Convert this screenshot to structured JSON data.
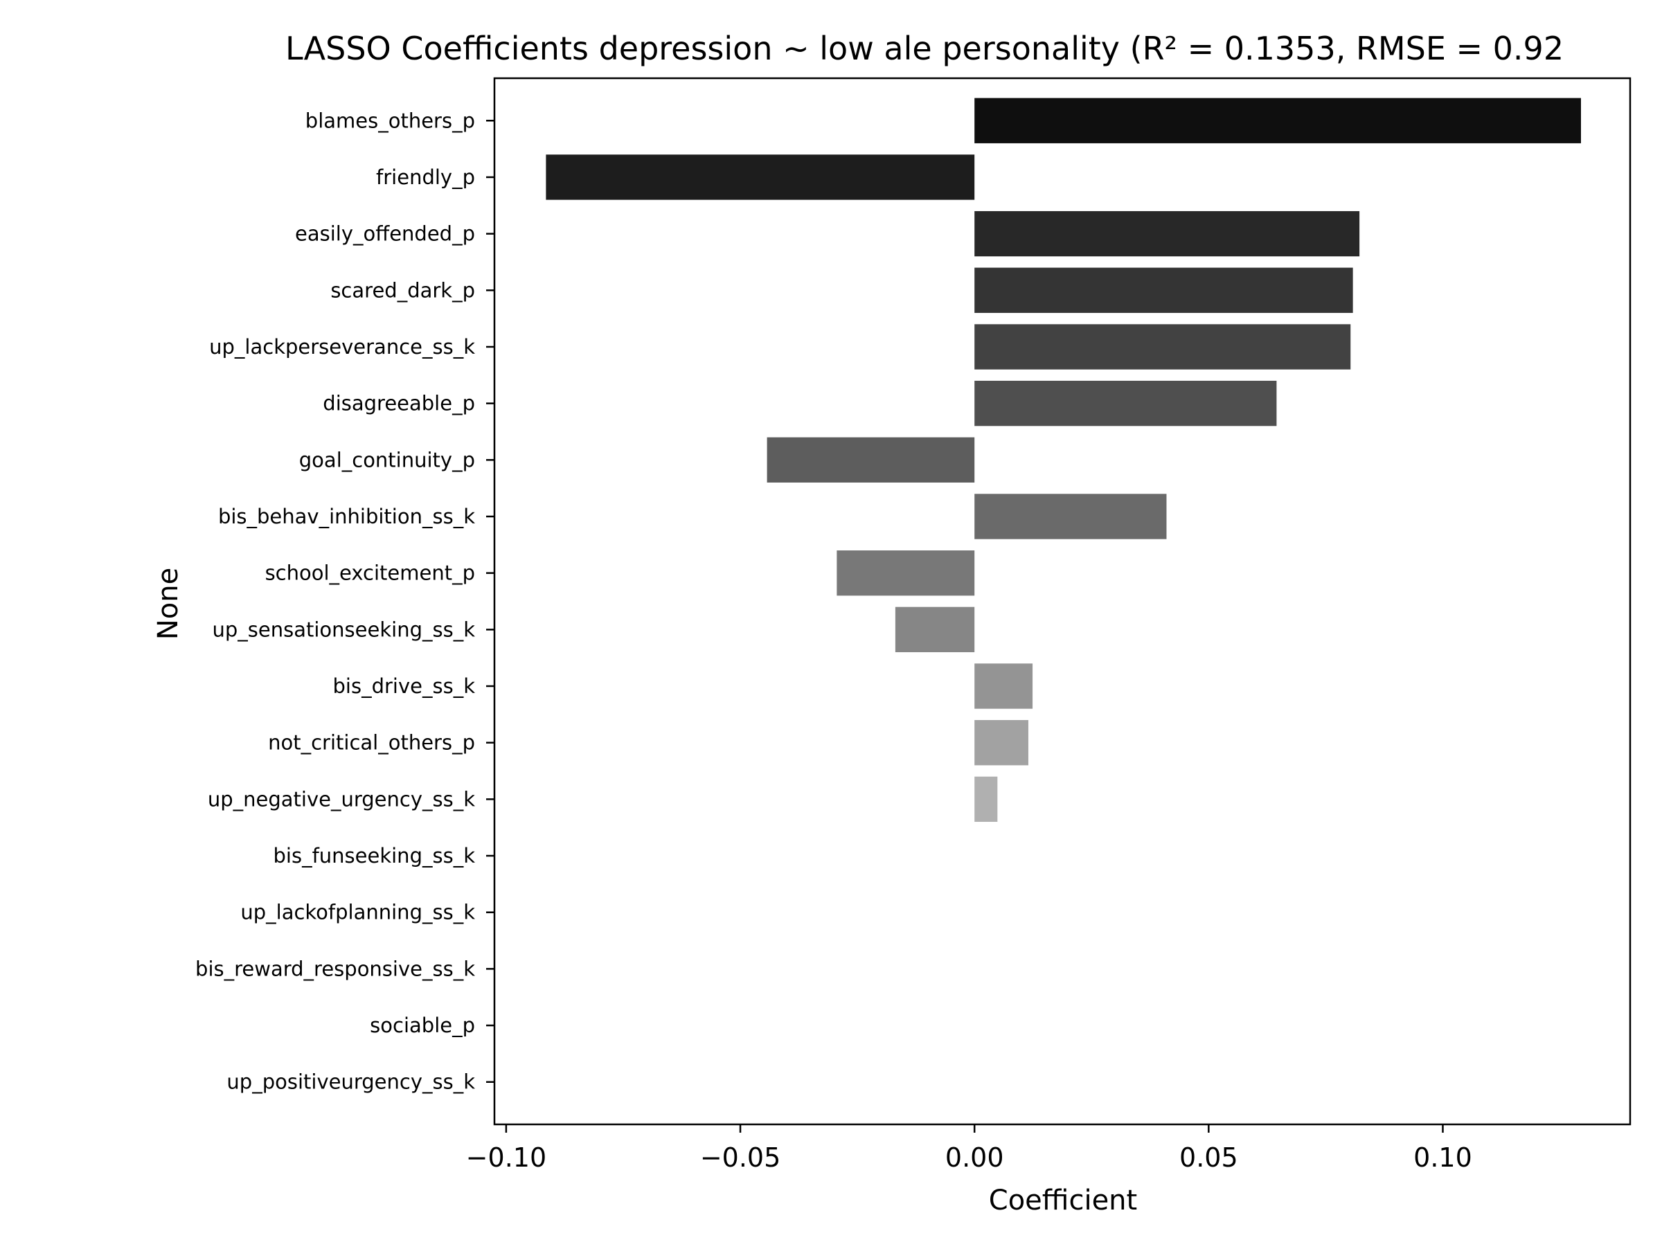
{
  "chart_data": {
    "type": "bar",
    "orientation": "horizontal",
    "title": "LASSO Coefficients depression ~ low ale personality (R² = 0.1353, RMSE = 0.92",
    "xlabel": "Coefficient",
    "ylabel": "None",
    "xlim": [
      -0.1025,
      0.14
    ],
    "xticks": [
      -0.1,
      -0.05,
      0.0,
      0.05,
      0.1
    ],
    "xtick_labels": [
      "−0.10",
      "−0.05",
      "0.00",
      "0.05",
      "0.10"
    ],
    "grid": false,
    "legend": "none",
    "categories": [
      "blames_others_p",
      "friendly_p",
      "easily_offended_p",
      "scared_dark_p",
      "up_lackperseverance_ss_k",
      "disagreeable_p",
      "goal_continuity_p",
      "bis_behav_inhibition_ss_k",
      "school_excitement_p",
      "up_sensationseeking_ss_k",
      "bis_drive_ss_k",
      "not_critical_others_p",
      "up_negative_urgency_ss_k",
      "bis_funseeking_ss_k",
      "up_lackofplanning_ss_k",
      "bis_reward_responsive_ss_k",
      "sociable_p",
      "up_positiveurgency_ss_k"
    ],
    "values": [
      0.1295,
      -0.0915,
      0.0822,
      0.0808,
      0.0803,
      0.0645,
      -0.0443,
      0.041,
      -0.0294,
      -0.0169,
      0.0124,
      0.0115,
      0.0049,
      0.0,
      0.0,
      0.0,
      0.0,
      0.0
    ],
    "colors": [
      "#0f0f0f",
      "#1d1d1d",
      "#282828",
      "#343434",
      "#424242",
      "#4f4f4f",
      "#5d5d5d",
      "#6a6a6a",
      "#787878",
      "#868686",
      "#949494",
      "#a2a2a2",
      "#b0b0b0",
      "#bdbdbd",
      "#cacaca",
      "#d6d6d6",
      "#e2e2e2",
      "#ededed"
    ]
  }
}
